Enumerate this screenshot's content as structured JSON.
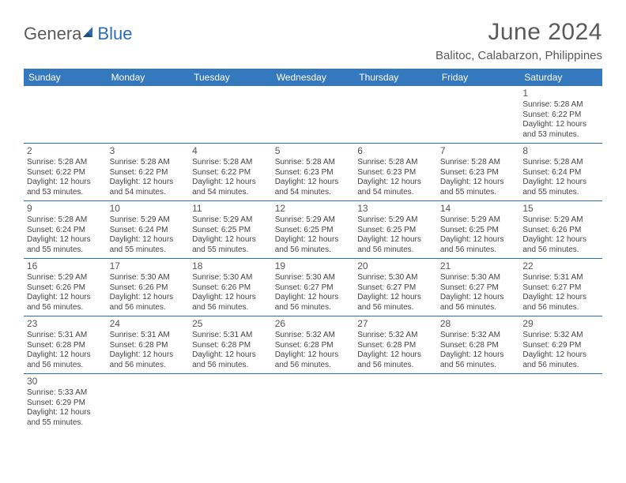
{
  "logo": {
    "part1": "Genera",
    "part2": "Blue"
  },
  "title": "June 2024",
  "location": "Balitoc, Calabarzon, Philippines",
  "colors": {
    "header_bg": "#3478bd",
    "header_text": "#ffffff",
    "cell_border": "#2a6db5",
    "body_text": "#444444",
    "title_text": "#5a5a5a",
    "logo_accent": "#2a6db5"
  },
  "weekdays": [
    "Sunday",
    "Monday",
    "Tuesday",
    "Wednesday",
    "Thursday",
    "Friday",
    "Saturday"
  ],
  "weeks": [
    [
      null,
      null,
      null,
      null,
      null,
      null,
      {
        "n": "1",
        "sr": "Sunrise: 5:28 AM",
        "ss": "Sunset: 6:22 PM",
        "dl": "Daylight: 12 hours and 53 minutes."
      }
    ],
    [
      {
        "n": "2",
        "sr": "Sunrise: 5:28 AM",
        "ss": "Sunset: 6:22 PM",
        "dl": "Daylight: 12 hours and 53 minutes."
      },
      {
        "n": "3",
        "sr": "Sunrise: 5:28 AM",
        "ss": "Sunset: 6:22 PM",
        "dl": "Daylight: 12 hours and 54 minutes."
      },
      {
        "n": "4",
        "sr": "Sunrise: 5:28 AM",
        "ss": "Sunset: 6:22 PM",
        "dl": "Daylight: 12 hours and 54 minutes."
      },
      {
        "n": "5",
        "sr": "Sunrise: 5:28 AM",
        "ss": "Sunset: 6:23 PM",
        "dl": "Daylight: 12 hours and 54 minutes."
      },
      {
        "n": "6",
        "sr": "Sunrise: 5:28 AM",
        "ss": "Sunset: 6:23 PM",
        "dl": "Daylight: 12 hours and 54 minutes."
      },
      {
        "n": "7",
        "sr": "Sunrise: 5:28 AM",
        "ss": "Sunset: 6:23 PM",
        "dl": "Daylight: 12 hours and 55 minutes."
      },
      {
        "n": "8",
        "sr": "Sunrise: 5:28 AM",
        "ss": "Sunset: 6:24 PM",
        "dl": "Daylight: 12 hours and 55 minutes."
      }
    ],
    [
      {
        "n": "9",
        "sr": "Sunrise: 5:28 AM",
        "ss": "Sunset: 6:24 PM",
        "dl": "Daylight: 12 hours and 55 minutes."
      },
      {
        "n": "10",
        "sr": "Sunrise: 5:29 AM",
        "ss": "Sunset: 6:24 PM",
        "dl": "Daylight: 12 hours and 55 minutes."
      },
      {
        "n": "11",
        "sr": "Sunrise: 5:29 AM",
        "ss": "Sunset: 6:25 PM",
        "dl": "Daylight: 12 hours and 55 minutes."
      },
      {
        "n": "12",
        "sr": "Sunrise: 5:29 AM",
        "ss": "Sunset: 6:25 PM",
        "dl": "Daylight: 12 hours and 56 minutes."
      },
      {
        "n": "13",
        "sr": "Sunrise: 5:29 AM",
        "ss": "Sunset: 6:25 PM",
        "dl": "Daylight: 12 hours and 56 minutes."
      },
      {
        "n": "14",
        "sr": "Sunrise: 5:29 AM",
        "ss": "Sunset: 6:25 PM",
        "dl": "Daylight: 12 hours and 56 minutes."
      },
      {
        "n": "15",
        "sr": "Sunrise: 5:29 AM",
        "ss": "Sunset: 6:26 PM",
        "dl": "Daylight: 12 hours and 56 minutes."
      }
    ],
    [
      {
        "n": "16",
        "sr": "Sunrise: 5:29 AM",
        "ss": "Sunset: 6:26 PM",
        "dl": "Daylight: 12 hours and 56 minutes."
      },
      {
        "n": "17",
        "sr": "Sunrise: 5:30 AM",
        "ss": "Sunset: 6:26 PM",
        "dl": "Daylight: 12 hours and 56 minutes."
      },
      {
        "n": "18",
        "sr": "Sunrise: 5:30 AM",
        "ss": "Sunset: 6:26 PM",
        "dl": "Daylight: 12 hours and 56 minutes."
      },
      {
        "n": "19",
        "sr": "Sunrise: 5:30 AM",
        "ss": "Sunset: 6:27 PM",
        "dl": "Daylight: 12 hours and 56 minutes."
      },
      {
        "n": "20",
        "sr": "Sunrise: 5:30 AM",
        "ss": "Sunset: 6:27 PM",
        "dl": "Daylight: 12 hours and 56 minutes."
      },
      {
        "n": "21",
        "sr": "Sunrise: 5:30 AM",
        "ss": "Sunset: 6:27 PM",
        "dl": "Daylight: 12 hours and 56 minutes."
      },
      {
        "n": "22",
        "sr": "Sunrise: 5:31 AM",
        "ss": "Sunset: 6:27 PM",
        "dl": "Daylight: 12 hours and 56 minutes."
      }
    ],
    [
      {
        "n": "23",
        "sr": "Sunrise: 5:31 AM",
        "ss": "Sunset: 6:28 PM",
        "dl": "Daylight: 12 hours and 56 minutes."
      },
      {
        "n": "24",
        "sr": "Sunrise: 5:31 AM",
        "ss": "Sunset: 6:28 PM",
        "dl": "Daylight: 12 hours and 56 minutes."
      },
      {
        "n": "25",
        "sr": "Sunrise: 5:31 AM",
        "ss": "Sunset: 6:28 PM",
        "dl": "Daylight: 12 hours and 56 minutes."
      },
      {
        "n": "26",
        "sr": "Sunrise: 5:32 AM",
        "ss": "Sunset: 6:28 PM",
        "dl": "Daylight: 12 hours and 56 minutes."
      },
      {
        "n": "27",
        "sr": "Sunrise: 5:32 AM",
        "ss": "Sunset: 6:28 PM",
        "dl": "Daylight: 12 hours and 56 minutes."
      },
      {
        "n": "28",
        "sr": "Sunrise: 5:32 AM",
        "ss": "Sunset: 6:28 PM",
        "dl": "Daylight: 12 hours and 56 minutes."
      },
      {
        "n": "29",
        "sr": "Sunrise: 5:32 AM",
        "ss": "Sunset: 6:29 PM",
        "dl": "Daylight: 12 hours and 56 minutes."
      }
    ],
    [
      {
        "n": "30",
        "sr": "Sunrise: 5:33 AM",
        "ss": "Sunset: 6:29 PM",
        "dl": "Daylight: 12 hours and 55 minutes."
      },
      null,
      null,
      null,
      null,
      null,
      null
    ]
  ]
}
